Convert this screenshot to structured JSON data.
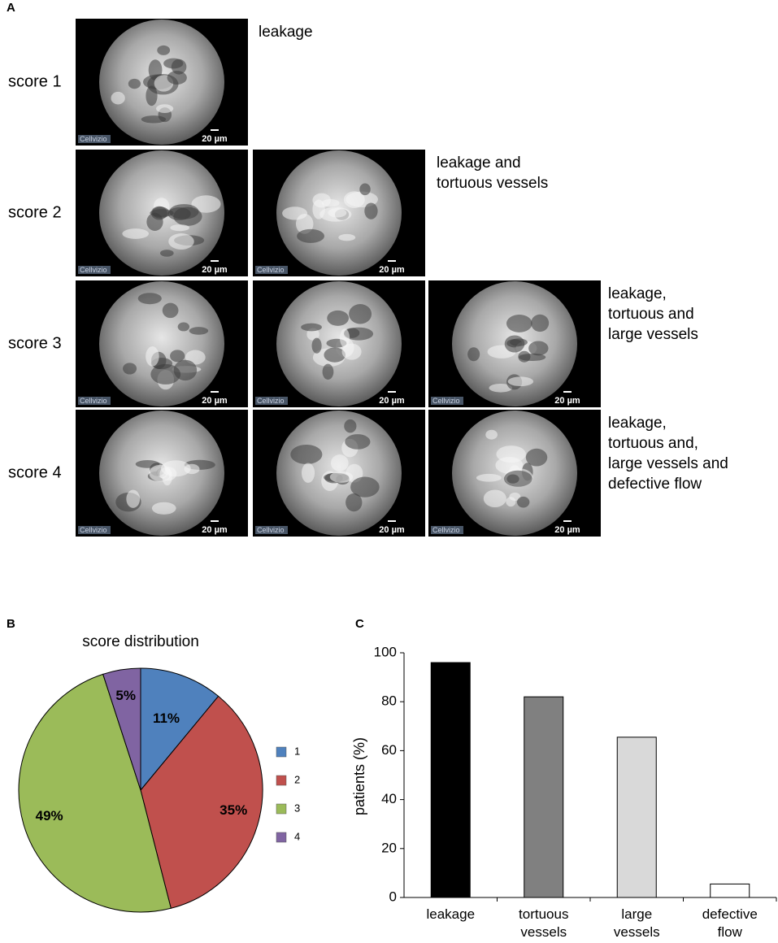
{
  "figure_a": {
    "panel": "A",
    "rows": [
      {
        "label": "score 1",
        "description": "leakage",
        "images": [
          {
            "scale": "20 µm",
            "watermark": "Cellvizio"
          }
        ]
      },
      {
        "label": "score 2",
        "description": "leakage and\ntortuous vessels",
        "images": [
          {
            "scale": "20 µm",
            "watermark": "Cellvizio"
          },
          {
            "scale": "20 µm",
            "watermark": "Cellvizio"
          }
        ]
      },
      {
        "label": "score 3",
        "description": "leakage,\ntortuous and\nlarge vessels",
        "images": [
          {
            "scale": "20 µm",
            "watermark": "Cellvizio"
          },
          {
            "scale": "20 µm",
            "watermark": "Cellvizio"
          },
          {
            "scale": "20 µm",
            "watermark": "Cellvizio"
          }
        ]
      },
      {
        "label": "score 4",
        "description": "leakage,\ntortuous and,\nlarge vessels and\ndefective flow",
        "images": [
          {
            "scale": "20 µm",
            "watermark": "Cellvizio"
          },
          {
            "scale": "20 µm",
            "watermark": "Cellvizio"
          },
          {
            "scale": "20 µm",
            "watermark": "Cellvizio"
          }
        ]
      }
    ]
  },
  "chart_data": [
    {
      "type": "pie",
      "panel": "B",
      "title": "score distribution",
      "categories": [
        "1",
        "2",
        "3",
        "4"
      ],
      "values": [
        11,
        35,
        49,
        5
      ],
      "value_labels": [
        "11%",
        "35%",
        "49%",
        "5%"
      ],
      "colors": [
        "#4f81bd",
        "#c0504d",
        "#9bbb59",
        "#8064a2"
      ],
      "legend": "right"
    },
    {
      "type": "bar",
      "panel": "C",
      "y_label": "patients (%)",
      "categories": [
        "leakage",
        "tortuous\nvessels",
        "large\nvessels",
        "defective\nflow"
      ],
      "values": [
        96,
        82,
        65.5,
        5.5
      ],
      "colors": [
        "#000000",
        "#808080",
        "#d9d9d9",
        "#ffffff"
      ],
      "ylim": [
        0,
        100
      ],
      "yticks": [
        0,
        20,
        40,
        60,
        80,
        100
      ]
    }
  ]
}
